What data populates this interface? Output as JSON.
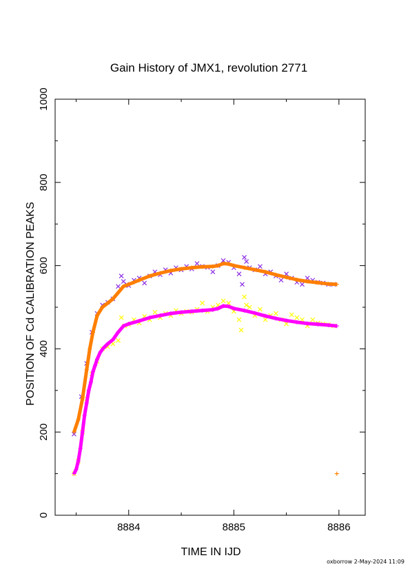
{
  "chart_data": {
    "type": "scatter",
    "title": "Gain History of JMX1, revolution 2771",
    "xlabel": "TIME IN IJD",
    "ylabel": "POSITION OF Cd CALIBRATION PEAKS",
    "xlim": [
      8883.3,
      8886.25
    ],
    "ylim": [
      0,
      1000
    ],
    "xticks": [
      "8884",
      "8885",
      "8886"
    ],
    "xtick_values": [
      8884,
      8885,
      8886
    ],
    "yticks": [
      "0",
      "200",
      "400",
      "600",
      "800",
      "1000"
    ],
    "ytick_values": [
      0,
      200,
      400,
      600,
      800,
      1000
    ],
    "grid": false,
    "legend": "none",
    "colors": {
      "purple": "#8a2be2",
      "orange": "#ff7f00",
      "yellow": "#ffff00",
      "magenta": "#ff00ff"
    },
    "footer": "oxborrow  2-May-2024 11:09",
    "series": [
      {
        "color": "#8a2be2",
        "marker": "x",
        "x": [
          8883.48,
          8883.55,
          8883.6,
          8883.65,
          8883.7,
          8883.75,
          8883.8,
          8883.85,
          8883.9,
          8883.93,
          8883.95,
          8883.98,
          8884.0,
          8884.05,
          8884.1,
          8884.15,
          8884.2,
          8884.25,
          8884.3,
          8884.35,
          8884.4,
          8884.45,
          8884.5,
          8884.55,
          8884.6,
          8884.65,
          8884.7,
          8884.75,
          8884.8,
          8884.85,
          8884.9,
          8884.95,
          8885.0,
          8885.05,
          8885.08,
          8885.1,
          8885.12,
          8885.15,
          8885.2,
          8885.25,
          8885.3,
          8885.35,
          8885.4,
          8885.45,
          8885.5,
          8885.55,
          8885.6,
          8885.65,
          8885.7,
          8885.75,
          8885.8,
          8885.85,
          8885.9,
          8885.95
        ],
        "y": [
          195,
          285,
          365,
          440,
          485,
          505,
          512,
          520,
          550,
          575,
          562,
          555,
          552,
          565,
          570,
          558,
          575,
          585,
          578,
          590,
          582,
          595,
          590,
          598,
          592,
          605,
          598,
          596,
          585,
          600,
          612,
          608,
          595,
          580,
          555,
          620,
          610,
          595,
          590,
          598,
          580,
          585,
          575,
          565,
          580,
          570,
          560,
          555,
          570,
          565,
          560,
          558,
          555,
          555
        ]
      },
      {
        "color": "#ff7f00",
        "marker": "+",
        "x": [
          8883.48,
          8883.52,
          8883.56,
          8883.6,
          8883.63,
          8883.66,
          8883.7,
          8883.75,
          8883.8,
          8883.85,
          8883.9,
          8883.95,
          8884.0,
          8884.05,
          8884.1,
          8884.2,
          8884.3,
          8884.4,
          8884.5,
          8884.6,
          8884.7,
          8884.8,
          8884.85,
          8884.9,
          8884.95,
          8885.0,
          8885.1,
          8885.2,
          8885.3,
          8885.4,
          8885.5,
          8885.6,
          8885.7,
          8885.8,
          8885.9,
          8885.98,
          8885.98
        ],
        "y": [
          200,
          230,
          280,
          350,
          400,
          440,
          480,
          500,
          510,
          520,
          535,
          550,
          555,
          560,
          565,
          575,
          582,
          588,
          592,
          595,
          597,
          598,
          600,
          605,
          604,
          600,
          595,
          590,
          585,
          578,
          572,
          566,
          562,
          559,
          556,
          555,
          100
        ]
      },
      {
        "color": "#ffff00",
        "marker": "x",
        "x": [
          8883.48,
          8883.52,
          8883.56,
          8883.6,
          8883.65,
          8883.7,
          8883.75,
          8883.8,
          8883.85,
          8883.9,
          8883.93,
          8883.96,
          8884.0,
          8884.05,
          8884.1,
          8884.15,
          8884.2,
          8884.25,
          8884.3,
          8884.35,
          8884.4,
          8884.45,
          8884.5,
          8884.55,
          8884.6,
          8884.65,
          8884.7,
          8884.75,
          8884.8,
          8884.85,
          8884.9,
          8884.95,
          8885.0,
          8885.05,
          8885.07,
          8885.1,
          8885.12,
          8885.15,
          8885.2,
          8885.25,
          8885.3,
          8885.35,
          8885.4,
          8885.45,
          8885.5,
          8885.55,
          8885.6,
          8885.65,
          8885.7,
          8885.75,
          8885.8,
          8885.85,
          8885.9,
          8885.95
        ],
        "y": [
          100,
          130,
          200,
          280,
          340,
          370,
          400,
          405,
          412,
          420,
          475,
          455,
          458,
          470,
          462,
          478,
          470,
          488,
          475,
          485,
          480,
          492,
          485,
          490,
          488,
          495,
          510,
          490,
          500,
          505,
          515,
          510,
          490,
          470,
          445,
          525,
          505,
          500,
          480,
          495,
          470,
          480,
          485,
          470,
          460,
          482,
          475,
          470,
          455,
          470,
          462,
          460,
          458,
          455
        ]
      },
      {
        "color": "#ff00ff",
        "marker": "+",
        "x": [
          8883.48,
          8883.5,
          8883.52,
          8883.54,
          8883.56,
          8883.58,
          8883.6,
          8883.62,
          8883.64,
          8883.66,
          8883.68,
          8883.7,
          8883.73,
          8883.76,
          8883.8,
          8883.85,
          8883.9,
          8883.95,
          8884.0,
          8884.1,
          8884.2,
          8884.3,
          8884.4,
          8884.5,
          8884.6,
          8884.7,
          8884.8,
          8884.85,
          8884.9,
          8884.95,
          8885.0,
          8885.1,
          8885.2,
          8885.3,
          8885.4,
          8885.5,
          8885.6,
          8885.7,
          8885.8,
          8885.9,
          8885.98
        ],
        "y": [
          100,
          110,
          130,
          160,
          200,
          240,
          270,
          300,
          320,
          345,
          360,
          375,
          392,
          402,
          412,
          422,
          440,
          455,
          460,
          467,
          475,
          480,
          485,
          488,
          490,
          492,
          494,
          497,
          503,
          502,
          497,
          492,
          486,
          479,
          473,
          468,
          464,
          461,
          459,
          457,
          455
        ]
      }
    ]
  }
}
